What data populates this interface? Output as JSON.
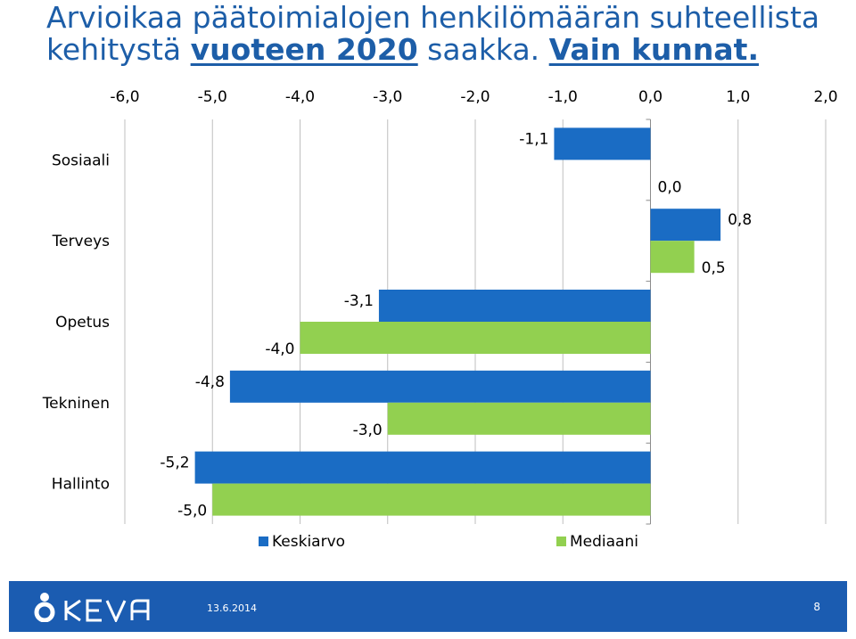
{
  "title": {
    "line1": "Arvioikaa päätoimialojen henkilömäärän suhteellista",
    "line2_pre": "kehitystä ",
    "line2_em1": "vuoteen 2020",
    "line2_mid": " saakka. ",
    "line2_em2": "Vain kunnat."
  },
  "chart_data": {
    "type": "bar",
    "orientation": "horizontal",
    "categories": [
      "Sosiaali",
      "Terveys",
      "Opetus",
      "Tekninen",
      "Hallinto"
    ],
    "series": [
      {
        "name": "Keskiarvo",
        "color": "#1a6cc4",
        "values": [
          -1.1,
          0.8,
          -3.1,
          -4.8,
          -5.2
        ],
        "labels": [
          "-1,1",
          "0,8",
          "-3,1",
          "-4,8",
          "-5,2"
        ]
      },
      {
        "name": "Mediaani",
        "color": "#92d050",
        "values": [
          0.0,
          0.5,
          -4.0,
          -3.0,
          -5.0
        ],
        "labels": [
          "0,0",
          "0,5",
          "-4,0",
          "-3,0",
          "-5,0"
        ]
      }
    ],
    "xlim": [
      -6,
      2
    ],
    "xticks": [
      -6,
      -5,
      -4,
      -3,
      -2,
      -1,
      0,
      1,
      2
    ],
    "xtick_labels": [
      "-6,0",
      "-5,0",
      "-4,0",
      "-3,0",
      "-2,0",
      "-1,0",
      "0,0",
      "1,0",
      "2,0"
    ],
    "x_axis_position": "top",
    "grid": true,
    "legend": "bottom"
  },
  "footer": {
    "logo_text": "KEVA",
    "date": "13.6.2014",
    "page": "8",
    "bg_color": "#1b5cb1"
  }
}
